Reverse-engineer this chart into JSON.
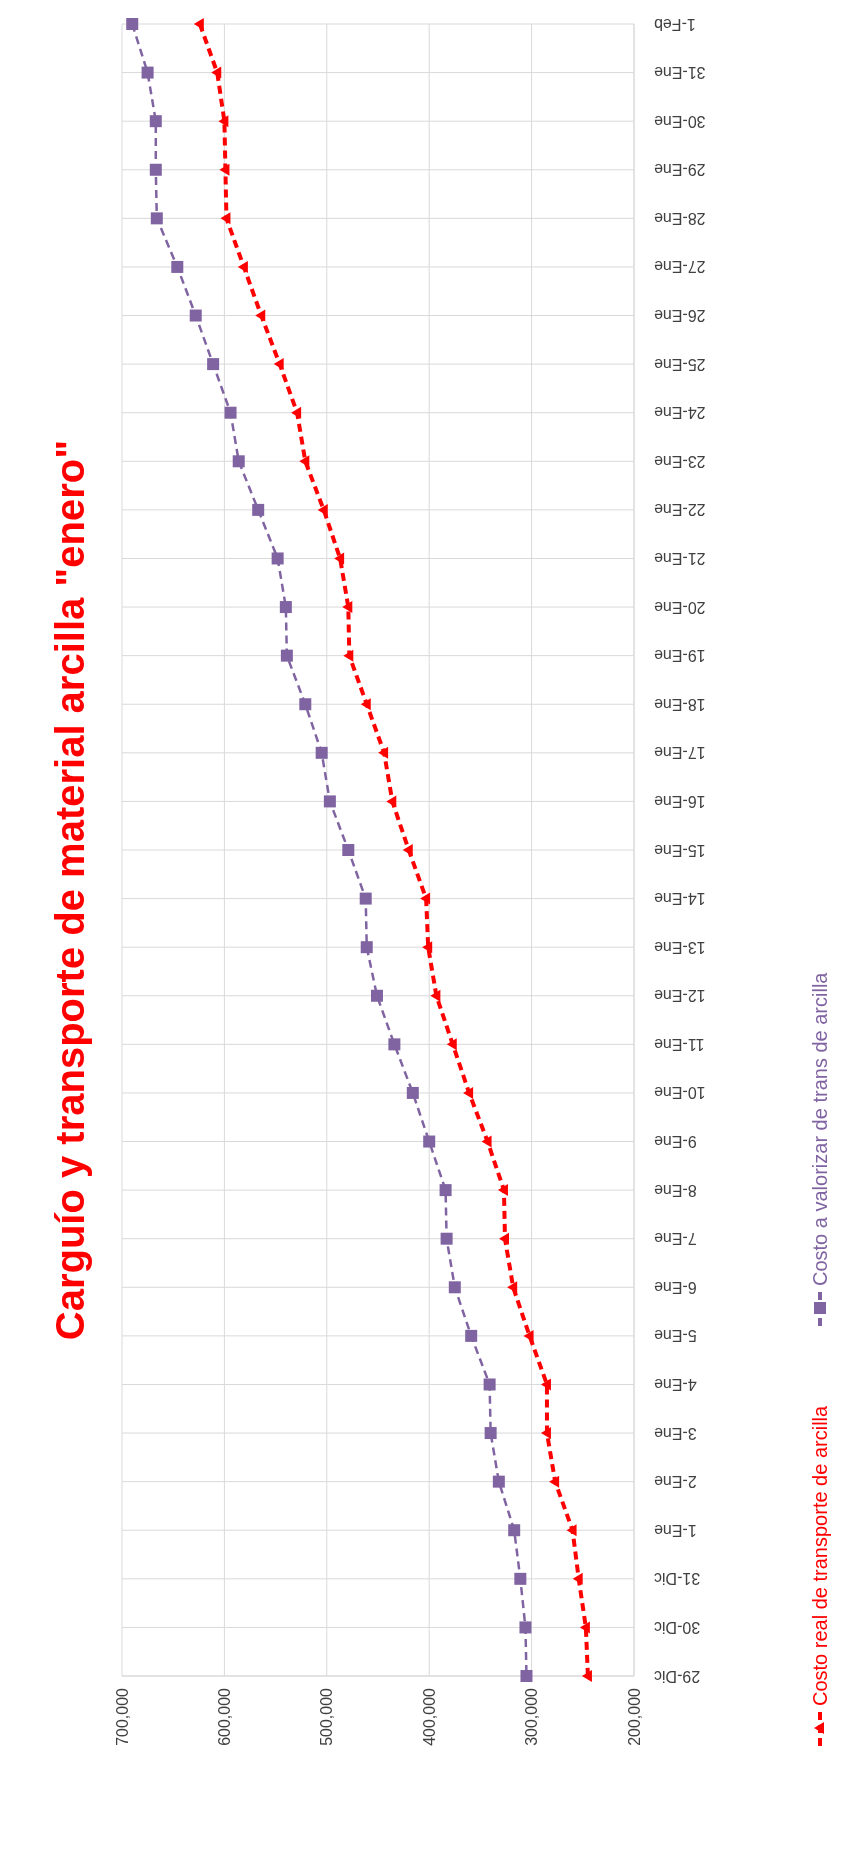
{
  "chart_data": {
    "type": "line",
    "title": "Carguío y transporte de material arcilla \"enero\"",
    "orientation": "horizontal",
    "categories": [
      "1-Feb",
      "31-Ene",
      "30-Ene",
      "29-Ene",
      "28-Ene",
      "27-Ene",
      "26-Ene",
      "25-Ene",
      "24-Ene",
      "23-Ene",
      "22-Ene",
      "21-Ene",
      "20-Ene",
      "19-Ene",
      "18-Ene",
      "17-Ene",
      "16-Ene",
      "15-Ene",
      "14-Ene",
      "13-Ene",
      "12-Ene",
      "11-Ene",
      "10-Ene",
      "9-Ene",
      "8-Ene",
      "7-Ene",
      "6-Ene",
      "5-Ene",
      "4-Ene",
      "3-Ene",
      "2-Ene",
      "1-Ene",
      "31-Dic",
      "30-Dic",
      "29-Dic"
    ],
    "series": [
      {
        "name": "Costo real de transporte de arcilla",
        "color": "#ff0000",
        "marker": "triangle",
        "values": [
          624000,
          607000,
          600000,
          599000,
          598000,
          581000,
          564000,
          546000,
          529000,
          521000,
          503000,
          487000,
          479000,
          478000,
          461000,
          444000,
          436000,
          420000,
          403000,
          401000,
          393000,
          377000,
          361000,
          343000,
          327000,
          326000,
          318000,
          302000,
          285000,
          285000,
          277000,
          260000,
          254000,
          247000,
          245000
        ]
      },
      {
        "name": "Costo a valorizar de trans de arcilla",
        "color": "#8064a2",
        "marker": "square",
        "values": [
          690000,
          675000,
          667000,
          667000,
          666000,
          646000,
          628000,
          611000,
          594000,
          586000,
          567000,
          548000,
          540000,
          539000,
          521000,
          505000,
          497000,
          479000,
          462000,
          461000,
          451000,
          434000,
          416000,
          400000,
          384000,
          383000,
          375000,
          359000,
          341000,
          340000,
          332000,
          317000,
          311000,
          306000,
          305000
        ]
      }
    ],
    "xlim": [
      700000,
      200000
    ],
    "xticks": [
      {
        "value": 700000,
        "label": "700,000"
      },
      {
        "value": 600000,
        "label": "600,000"
      },
      {
        "value": 500000,
        "label": "500,000"
      },
      {
        "value": 400000,
        "label": "400,000"
      },
      {
        "value": 300000,
        "label": "300,000"
      },
      {
        "value": 200000,
        "label": "200,000"
      }
    ],
    "grid": true,
    "legend": "right",
    "line_style": "dashed"
  }
}
